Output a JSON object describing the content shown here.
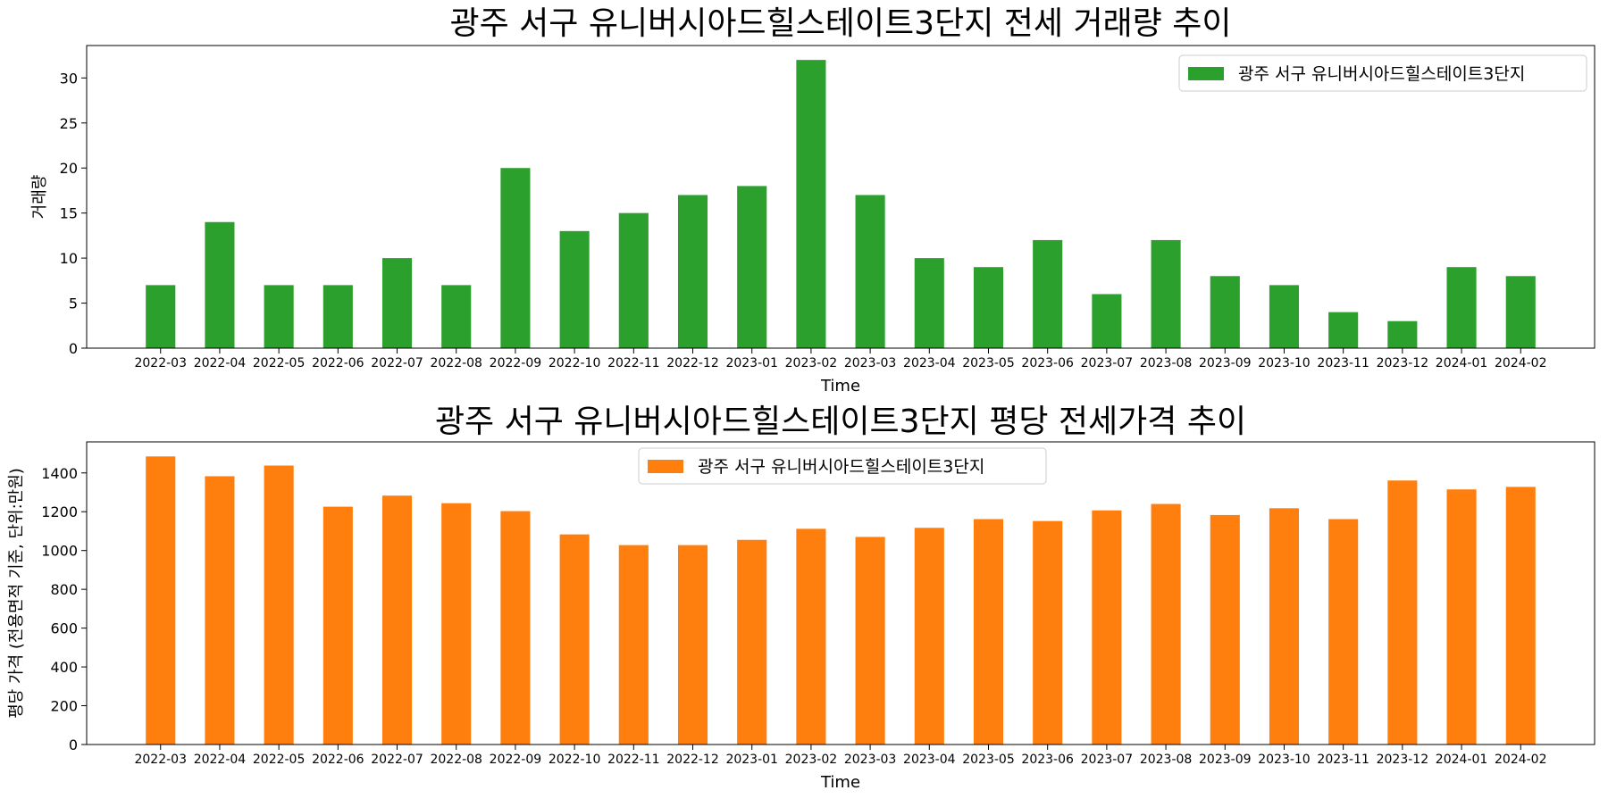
{
  "chart_data": [
    {
      "type": "bar",
      "title": "광주 서구 유니버시아드힐스테이트3단지 전세 거래량 추이",
      "xlabel": "Time",
      "ylabel": "거래량",
      "categories": [
        "2022-03",
        "2022-04",
        "2022-05",
        "2022-06",
        "2022-07",
        "2022-08",
        "2022-09",
        "2022-10",
        "2022-11",
        "2022-12",
        "2023-01",
        "2023-02",
        "2023-03",
        "2023-04",
        "2023-05",
        "2023-06",
        "2023-07",
        "2023-08",
        "2023-09",
        "2023-10",
        "2023-11",
        "2023-12",
        "2024-01",
        "2024-02"
      ],
      "series": [
        {
          "name": "광주 서구 유니버시아드힐스테이트3단지",
          "color": "#2ca02c",
          "values": [
            7,
            14,
            7,
            7,
            10,
            7,
            20,
            13,
            15,
            17,
            18,
            32,
            17,
            10,
            9,
            12,
            6,
            12,
            8,
            7,
            4,
            3,
            9,
            8
          ]
        }
      ],
      "ylim": [
        0,
        33.6
      ],
      "yticks": [
        0,
        5,
        10,
        15,
        20,
        25,
        30
      ],
      "legend_position": "upper right",
      "grid": false
    },
    {
      "type": "bar",
      "title": "광주 서구 유니버시아드힐스테이트3단지 평당 전세가격 추이",
      "xlabel": "Time",
      "ylabel": "평당 가격 (전용면적 기준, 단위:만원)",
      "categories": [
        "2022-03",
        "2022-04",
        "2022-05",
        "2022-06",
        "2022-07",
        "2022-08",
        "2022-09",
        "2022-10",
        "2022-11",
        "2022-12",
        "2023-01",
        "2023-02",
        "2023-03",
        "2023-04",
        "2023-05",
        "2023-06",
        "2023-07",
        "2023-08",
        "2023-09",
        "2023-10",
        "2023-11",
        "2023-12",
        "2024-01",
        "2024-02"
      ],
      "series": [
        {
          "name": "광주 서구 유니버시아드힐스테이트3단지",
          "color": "#ff7f0e",
          "values": [
            1485,
            1383,
            1438,
            1226,
            1283,
            1244,
            1203,
            1083,
            1028,
            1028,
            1055,
            1112,
            1070,
            1117,
            1162,
            1152,
            1207,
            1240,
            1183,
            1218,
            1162,
            1361,
            1315,
            1328
          ]
        }
      ],
      "ylim": [
        0,
        1560
      ],
      "yticks": [
        0,
        200,
        400,
        600,
        800,
        1000,
        1200,
        1400
      ],
      "legend_position": "upper center",
      "grid": false
    }
  ]
}
